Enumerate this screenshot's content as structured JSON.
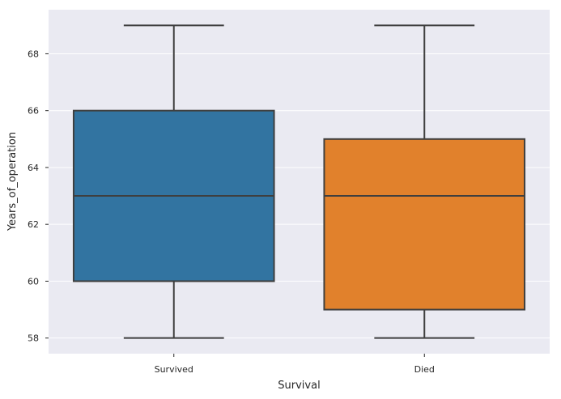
{
  "chart_data": {
    "type": "box",
    "title": "",
    "xlabel": "Survival",
    "ylabel": "Years_of_operation",
    "ylim": [
      57.45,
      69.55
    ],
    "yticks": [
      58,
      60,
      62,
      64,
      66,
      68
    ],
    "grid": true,
    "legend": "none",
    "categories": [
      "Survived",
      "Died"
    ],
    "boxes": [
      {
        "category": "Survived",
        "whisker_low": 58,
        "q1": 60,
        "median": 63,
        "q3": 66,
        "whisker_high": 69,
        "color": "#3274a1"
      },
      {
        "category": "Died",
        "whisker_low": 58,
        "q1": 59,
        "median": 63,
        "q3": 65,
        "whisker_high": 69,
        "color": "#e1812c"
      }
    ],
    "colors": {
      "background": "#eaeaf2",
      "grid": "#ffffff",
      "line": "#3f3f3f"
    }
  }
}
